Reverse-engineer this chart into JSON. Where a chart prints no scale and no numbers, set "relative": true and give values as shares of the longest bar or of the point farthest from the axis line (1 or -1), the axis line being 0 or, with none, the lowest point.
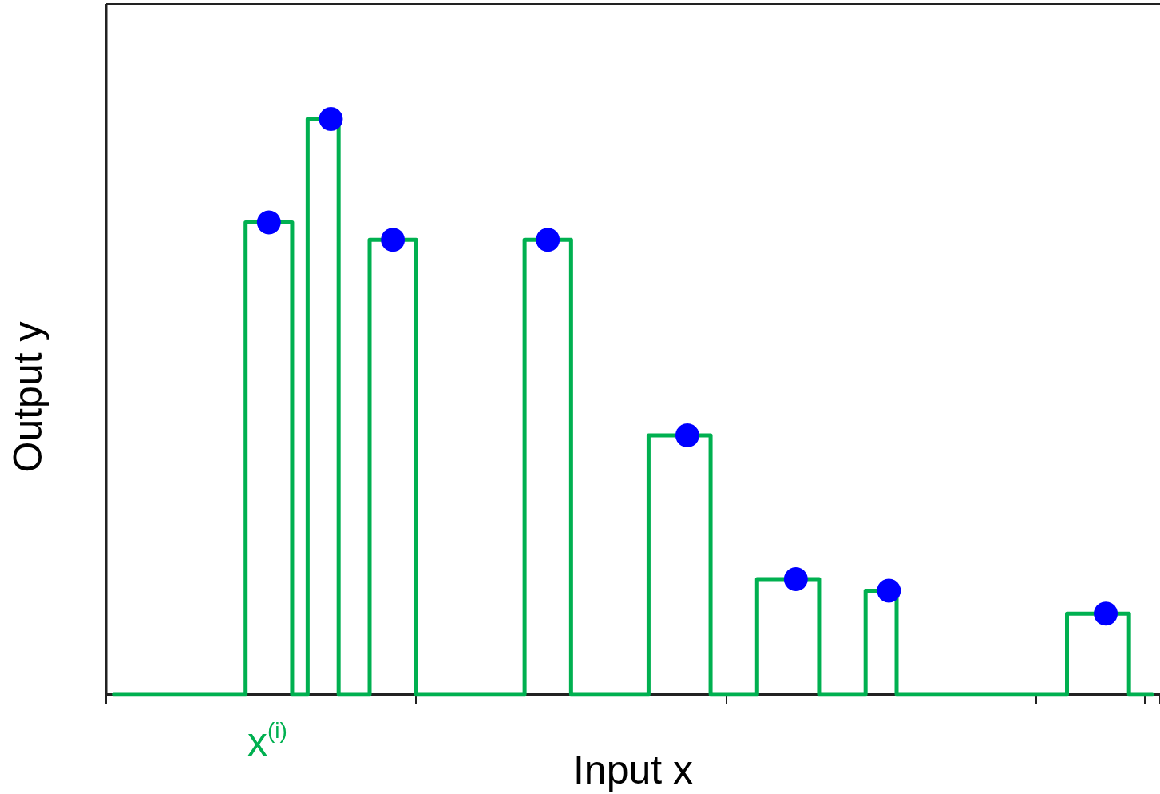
{
  "chart_data": {
    "type": "step",
    "relative": true,
    "xlabel": "Input x",
    "ylabel": "Output y",
    "grid": false,
    "categories": [
      null,
      null,
      null,
      null,
      null,
      null,
      null,
      null,
      null,
      null,
      null,
      null,
      null,
      null,
      null,
      null,
      null,
      null,
      null,
      null,
      null,
      null,
      null,
      null,
      null,
      null,
      null,
      null,
      null,
      null,
      null,
      null,
      null,
      null,
      null,
      null,
      null,
      null,
      null,
      null,
      null,
      null,
      null,
      null,
      null,
      null,
      null,
      null,
      null,
      null,
      null,
      null,
      null,
      null,
      null,
      null,
      null,
      null,
      null,
      null,
      null,
      null,
      null,
      null,
      null,
      null,
      null,
      null
    ],
    "series": [
      {
        "color": "#00b050",
        "values": [
          0,
          0,
          0,
          0,
          0,
          0,
          0,
          0,
          0,
          0.82,
          0.82,
          0.82,
          0,
          1,
          1,
          0,
          0,
          0.79,
          0.79,
          0.79,
          0,
          0,
          0,
          0,
          0,
          0,
          0,
          0.79,
          0.79,
          0.79,
          0,
          0,
          0,
          0,
          0,
          0.45,
          0.45,
          0.45,
          0.45,
          0,
          0,
          0,
          0.2,
          0.2,
          0.2,
          0.2,
          0,
          0,
          0,
          0.18,
          0.18,
          0,
          0,
          0,
          0,
          0,
          0,
          0,
          0,
          0,
          0,
          0,
          0.14,
          0.14,
          0.14,
          0.14,
          0,
          0
        ],
        "colors": [
          null,
          null,
          null,
          null,
          null,
          null,
          null,
          null,
          null,
          null,
          "#0000ff",
          null,
          null,
          null,
          "#0000ff",
          null,
          null,
          null,
          "#0000ff",
          null,
          null,
          null,
          null,
          null,
          null,
          null,
          null,
          null,
          "#0000ff",
          null,
          null,
          null,
          null,
          null,
          null,
          null,
          null,
          "#0000ff",
          null,
          null,
          null,
          null,
          null,
          null,
          "#0000ff",
          null,
          null,
          null,
          null,
          null,
          "#0000ff",
          null,
          null,
          null,
          null,
          null,
          null,
          null,
          null,
          null,
          null,
          null,
          null,
          null,
          "#0000ff",
          null,
          null,
          null
        ]
      }
    ],
    "annotations": [
      "x$^{(i)}$"
    ]
  }
}
